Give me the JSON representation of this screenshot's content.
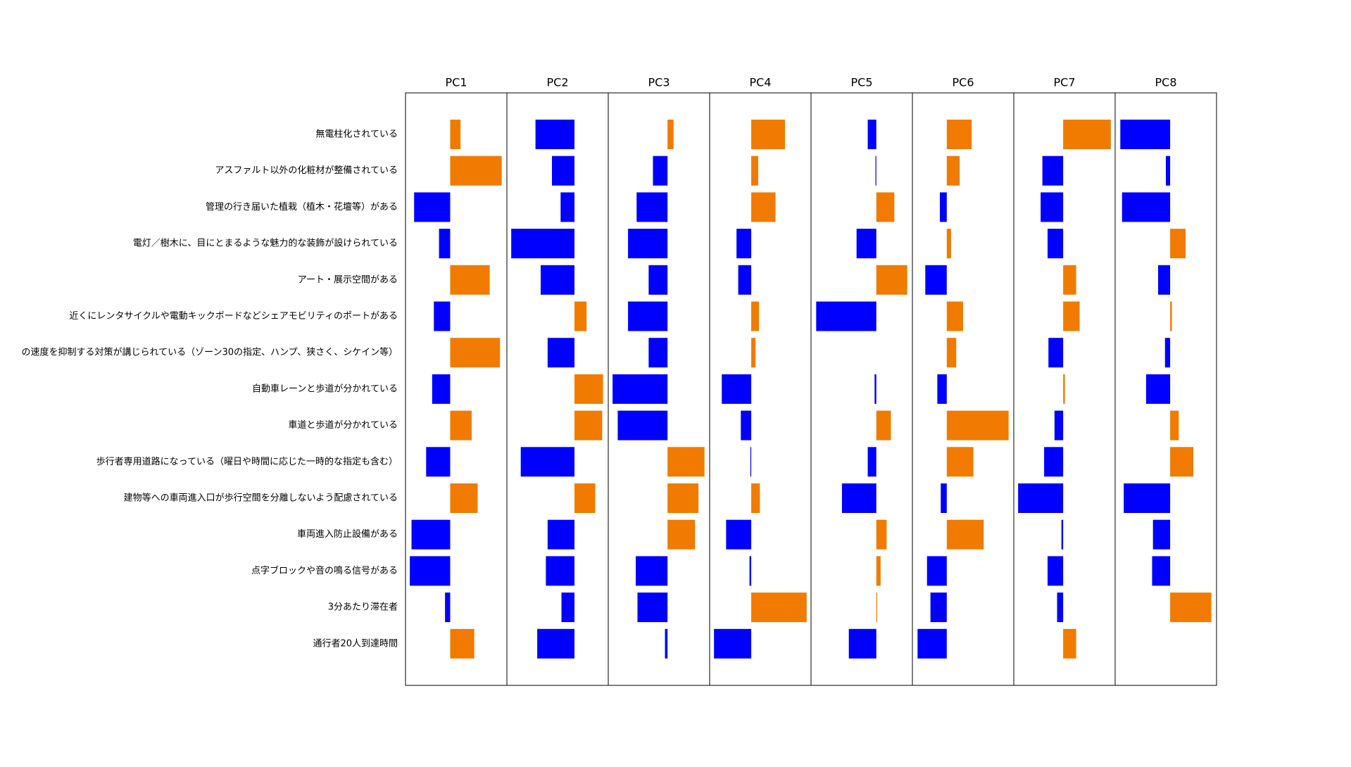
{
  "chart_data": {
    "type": "bar",
    "orientation": "horizontal",
    "positive_color": "#f07b00",
    "negative_color": "#0000ff",
    "categories": [
      "無電柱化されている",
      "アスファルト以外の化粧材が整備されている",
      "管理の行き届いた植栽（植木・花壇等）がある",
      "電灯／樹木に、目にとまるような魅力的な装飾が設けられている",
      "アート・展示空間がある",
      "近くにレンタサイクルや電動キックボードなどシェアモビリティのポートがある",
      "の速度を抑制する対策が講じられている（ゾーン30の指定、ハンプ、狭さく、シケイン等）",
      "自動車レーンと歩道が分かれている",
      "車道と歩道が分かれている",
      "歩行者専用道路になっている（曜日や時間に応じた一時的な指定も含む）",
      "建物等への車両進入口が歩行空間を分離しないよう配慮されている",
      "車両進入防止設備がある",
      "点字ブロックや音の鳴る信号がある",
      "3分あたり滞在者",
      "通行者20人到達時間"
    ],
    "panels": [
      {
        "title": "PC1",
        "xlim": [
          -0.26,
          0.33
        ],
        "values": [
          0.06,
          0.3,
          -0.21,
          -0.065,
          0.23,
          -0.095,
          0.29,
          -0.105,
          0.125,
          -0.14,
          0.16,
          -0.225,
          -0.235,
          -0.03,
          0.14
        ]
      },
      {
        "title": "PC2",
        "xlim": [
          -0.39,
          0.195
        ],
        "values": [
          -0.225,
          -0.13,
          -0.08,
          -0.365,
          -0.195,
          0.07,
          -0.155,
          0.165,
          0.16,
          -0.31,
          0.12,
          -0.155,
          -0.165,
          -0.075,
          -0.215
        ]
      },
      {
        "title": "PC3",
        "xlim": [
          -0.345,
          0.245
        ],
        "values": [
          0.035,
          -0.085,
          -0.18,
          -0.23,
          -0.11,
          -0.23,
          -0.11,
          -0.32,
          -0.29,
          0.215,
          0.18,
          0.16,
          -0.185,
          -0.175,
          -0.015
        ]
      },
      {
        "title": "PC4",
        "xlim": [
          -0.24,
          0.345
        ],
        "values": [
          0.195,
          0.04,
          0.14,
          -0.085,
          -0.075,
          0.045,
          0.025,
          -0.17,
          -0.06,
          -0.005,
          0.05,
          -0.145,
          -0.01,
          0.32,
          -0.215
        ]
      },
      {
        "title": "PC5",
        "xlim": [
          -0.38,
          0.21
        ],
        "values": [
          -0.05,
          -0.005,
          0.105,
          -0.115,
          0.18,
          -0.35,
          0,
          -0.01,
          0.085,
          -0.05,
          -0.2,
          0.06,
          0.025,
          0.005,
          -0.16
        ]
      },
      {
        "title": "PC6",
        "xlim": [
          -0.2,
          0.39
        ],
        "values": [
          0.145,
          0.075,
          -0.04,
          0.025,
          -0.125,
          0.095,
          0.055,
          -0.055,
          0.36,
          0.155,
          -0.035,
          0.215,
          -0.115,
          -0.095,
          -0.17
        ]
      },
      {
        "title": "PC7",
        "xlim": [
          -0.285,
          0.3
        ],
        "values": [
          0.275,
          -0.12,
          -0.13,
          -0.09,
          0.075,
          0.095,
          -0.085,
          0.01,
          -0.05,
          -0.11,
          -0.26,
          -0.01,
          -0.09,
          -0.035,
          0.075
        ]
      },
      {
        "title": "PC8",
        "xlim": [
          -0.32,
          0.27
        ],
        "values": [
          -0.29,
          -0.025,
          -0.28,
          0.09,
          -0.07,
          0.01,
          -0.03,
          -0.14,
          0.05,
          0.135,
          -0.27,
          -0.1,
          -0.105,
          0.24,
          0
        ]
      }
    ]
  }
}
